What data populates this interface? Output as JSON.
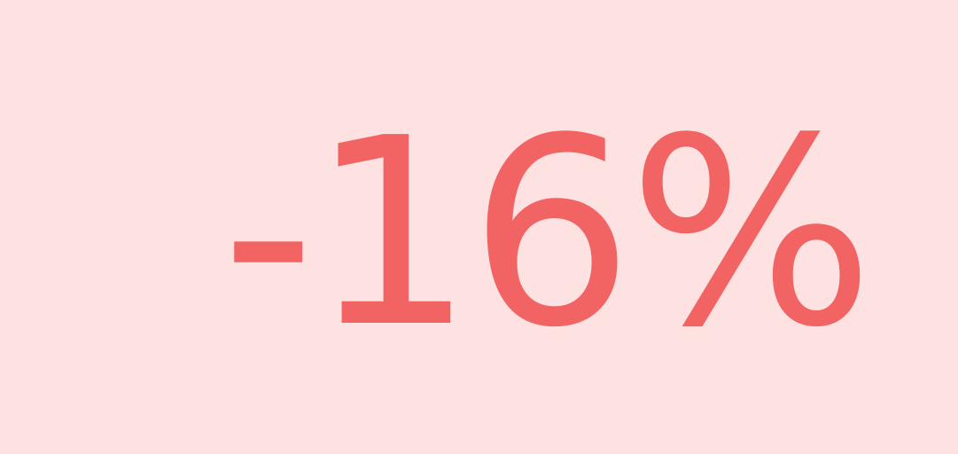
{
  "badge": {
    "value_text": "-16%",
    "colors": {
      "background": "#FEE2E2",
      "text": "#F26363"
    }
  }
}
